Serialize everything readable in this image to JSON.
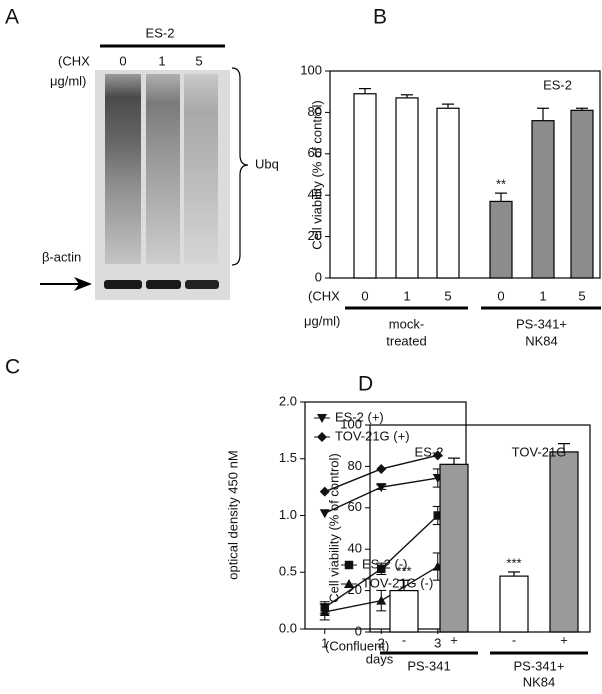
{
  "panel_a": {
    "panel": "A",
    "cell_line": "ES-2",
    "row_labels": [
      "(CHX",
      "μg/ml)"
    ],
    "lanes": [
      "0",
      "1",
      "5"
    ],
    "bracket_label": "Ubq",
    "loading_label": "β-actin"
  },
  "chart_data": [
    {
      "type": "bar",
      "panel": "B",
      "annotation": "ES-2",
      "y_label": "Cell viability (% of control)",
      "categories": [
        "0",
        "1",
        "5",
        "0",
        "1",
        "5"
      ],
      "values": [
        89,
        87,
        82,
        37,
        76,
        81
      ],
      "errors": [
        2.5,
        1.5,
        2,
        4,
        6,
        1
      ],
      "colors": [
        "#ffffff",
        "#ffffff",
        "#ffffff",
        "#8c8c8c",
        "#8c8c8c",
        "#8c8c8c"
      ],
      "significance": [
        null,
        null,
        null,
        "**",
        null,
        null
      ],
      "row_labels": [
        "(CHX",
        "μg/ml)"
      ],
      "groups": [
        [
          "mock-",
          "treated"
        ],
        [
          "PS-341+",
          "NK84"
        ]
      ],
      "ylim": [
        0,
        100
      ],
      "yticks": [
        0,
        20,
        40,
        60,
        80,
        100
      ]
    },
    {
      "type": "line",
      "panel": "C",
      "y_label": "optical density 450 nM",
      "x_label": "days",
      "x": [
        1,
        2,
        3
      ],
      "xlim": [
        0.65,
        3.5
      ],
      "xticks": [
        1,
        2,
        3
      ],
      "ylim": [
        0,
        2
      ],
      "yticks": [
        {
          "value": 0,
          "label": "0.0"
        },
        0.5,
        {
          "value": 1,
          "label": "1.0"
        },
        1.5,
        {
          "value": 2,
          "label": "2.0"
        }
      ],
      "series": [
        {
          "name": "ES-2 (+)",
          "color": "#111111",
          "marker": "triangle-down",
          "legend": "upper left",
          "values": [
            1.02,
            1.25,
            1.33
          ],
          "errors": [
            0,
            0.02,
            0.08
          ]
        },
        {
          "name": "TOV-21G (+)",
          "color": "#111111",
          "marker": "diamond",
          "legend": "upper left",
          "values": [
            1.21,
            1.41,
            1.53
          ],
          "errors": [
            0,
            0,
            0
          ]
        },
        {
          "name": "ES-2 (-)",
          "color": "#111111",
          "marker": "square",
          "legend": "lower right",
          "values": [
            0.19,
            0.53,
            1.0
          ],
          "errors": [
            0.05,
            0.05,
            0.08
          ]
        },
        {
          "name": "TOV-21G (-)",
          "color": "#111111",
          "marker": "triangle-up",
          "legend": "lower right",
          "values": [
            0.15,
            0.25,
            0.55
          ],
          "errors": [
            0.07,
            0.09,
            0.12
          ]
        }
      ]
    },
    {
      "type": "bar",
      "panel": "D",
      "y_label": "Cell viability (% of control)",
      "group_titles": [
        "ES-2",
        "TOV-21G"
      ],
      "categories": [
        "-",
        "+",
        "-",
        "+"
      ],
      "values": [
        20,
        81,
        27,
        87
      ],
      "errors": [
        5,
        3,
        2,
        4
      ],
      "colors": [
        "#ffffff",
        "#9a9a9a",
        "#ffffff",
        "#9a9a9a"
      ],
      "significance": [
        "***",
        null,
        "***",
        null
      ],
      "row_labels": [
        "(Confluent)"
      ],
      "groups": [
        [
          "PS-341"
        ],
        [
          "PS-341+",
          "NK84"
        ]
      ],
      "ylim": [
        0,
        100
      ],
      "yticks": [
        0,
        20,
        40,
        60,
        80,
        100
      ]
    }
  ]
}
